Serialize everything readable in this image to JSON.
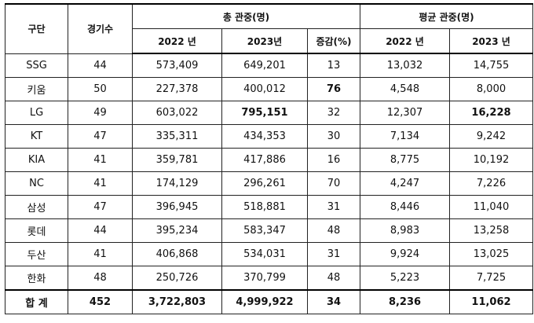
{
  "headers": {
    "team": "구단",
    "games": "경기수",
    "total_group": "총 관중(명)",
    "avg_group": "평균 관중(명)",
    "y2022": "2022 년",
    "y2023": "2023년",
    "change": "증감(%)",
    "avg_y2022": "2022 년",
    "avg_y2023": "2023 년"
  },
  "rows": [
    {
      "team": "SSG",
      "games": "44",
      "t2022": "573,409",
      "t2023": "649,201",
      "change": "13",
      "a2022": "13,032",
      "a2023": "14,755"
    },
    {
      "team": "키움",
      "games": "50",
      "t2022": "227,378",
      "t2023": "400,012",
      "change": "76",
      "a2022": "4,548",
      "a2023": "8,000"
    },
    {
      "team": "LG",
      "games": "49",
      "t2022": "603,022",
      "t2023": "795,151",
      "change": "32",
      "a2022": "12,307",
      "a2023": "16,228"
    },
    {
      "team": "KT",
      "games": "47",
      "t2022": "335,311",
      "t2023": "434,353",
      "change": "30",
      "a2022": "7,134",
      "a2023": "9,242"
    },
    {
      "team": "KIA",
      "games": "41",
      "t2022": "359,781",
      "t2023": "417,886",
      "change": "16",
      "a2022": "8,775",
      "a2023": "10,192"
    },
    {
      "team": "NC",
      "games": "41",
      "t2022": "174,129",
      "t2023": "296,261",
      "change": "70",
      "a2022": "4,247",
      "a2023": "7,226"
    },
    {
      "team": "삼성",
      "games": "47",
      "t2022": "396,945",
      "t2023": "518,881",
      "change": "31",
      "a2022": "8,446",
      "a2023": "11,040"
    },
    {
      "team": "롯데",
      "games": "44",
      "t2022": "395,234",
      "t2023": "583,347",
      "change": "48",
      "a2022": "8,983",
      "a2023": "13,258"
    },
    {
      "team": "두산",
      "games": "41",
      "t2022": "406,868",
      "t2023": "534,031",
      "change": "31",
      "a2022": "9,924",
      "a2023": "13,025"
    },
    {
      "team": "한화",
      "games": "48",
      "t2022": "250,726",
      "t2023": "370,799",
      "change": "48",
      "a2022": "5,223",
      "a2023": "7,725"
    }
  ],
  "total": {
    "team": "합 계",
    "games": "452",
    "t2022": "3,722,803",
    "t2023": "4,999,922",
    "change": "34",
    "a2022": "8,236",
    "a2023": "11,062"
  }
}
